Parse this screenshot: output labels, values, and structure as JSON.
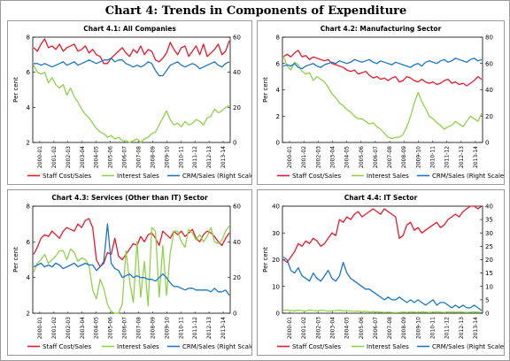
{
  "title": "Chart 4: Trends in Components of Expenditure",
  "colors": {
    "staff": "#e8192c",
    "interest": "#8fd24a",
    "crm": "#1b75c7"
  },
  "legend": [
    "Staff Cost/Sales",
    "Interest Sales",
    "CRM/Sales (Right Scale)"
  ],
  "x_labels": [
    "2000-01",
    "2001-02",
    "2002-03",
    "2003-04",
    "2004-05",
    "2005-06",
    "2006-07",
    "2007-08",
    "2008-09",
    "2009-10",
    "2010-11",
    "2011-12",
    "2012-13",
    "2013-14"
  ],
  "chart_data": [
    {
      "type": "line",
      "title": "Chart 4.1: All Companies",
      "ylabel": "Per cent",
      "ylim": [
        2,
        8
      ],
      "yticks": [
        2,
        4,
        6,
        8
      ],
      "y2lim": [
        0,
        60
      ],
      "y2ticks": [
        0,
        20,
        40,
        60
      ],
      "n_points": 54,
      "series": [
        {
          "name": "Staff Cost/Sales",
          "axis": "left",
          "values": [
            7.4,
            7.2,
            7.6,
            7.9,
            7.4,
            7.5,
            7.3,
            7.6,
            7.2,
            7.4,
            7.5,
            7.6,
            7.2,
            7.3,
            7.5,
            7.1,
            7.3,
            7.0,
            6.9,
            6.5,
            6.5,
            6.8,
            7.0,
            7.2,
            7.4,
            7.1,
            6.9,
            7.3,
            7.1,
            7.5,
            7.0,
            7.3,
            7.2,
            6.7,
            6.6,
            6.8,
            7.1,
            7.7,
            7.3,
            7.0,
            7.4,
            7.5,
            6.9,
            7.2,
            7.5,
            7.0,
            7.6,
            6.9,
            7.1,
            7.3,
            7.6,
            7.0,
            7.2,
            7.8
          ]
        },
        {
          "name": "Interest Sales",
          "axis": "left",
          "values": [
            6.4,
            6.0,
            5.9,
            6.0,
            5.4,
            5.7,
            5.3,
            5.1,
            5.3,
            4.7,
            5.1,
            4.6,
            4.3,
            3.9,
            3.6,
            3.4,
            3.1,
            2.8,
            2.6,
            2.5,
            2.3,
            2.4,
            2.2,
            2.3,
            2.1,
            2.1,
            2.0,
            2.1,
            2.2,
            2.0,
            2.2,
            2.3,
            2.5,
            2.6,
            3.0,
            3.4,
            3.8,
            3.3,
            3.0,
            3.1,
            2.9,
            3.2,
            3.0,
            3.1,
            3.3,
            3.2,
            3.0,
            3.4,
            3.5,
            3.9,
            3.7,
            3.8,
            4.0,
            4.1
          ]
        },
        {
          "name": "CRM/Sales (Right Scale)",
          "axis": "right",
          "values": [
            45,
            45,
            44,
            45,
            44,
            43,
            44,
            45,
            46,
            44,
            45,
            46,
            44,
            45,
            46,
            47,
            46,
            45,
            46,
            47,
            47,
            48,
            46,
            47,
            47,
            45,
            44,
            43,
            44,
            43,
            44,
            46,
            45,
            41,
            38,
            38,
            41,
            44,
            45,
            46,
            44,
            43,
            44,
            45,
            44,
            42,
            43,
            44,
            45,
            46,
            44,
            43,
            45,
            46
          ]
        }
      ]
    },
    {
      "type": "line",
      "title": "Chart 4.2: Manufacturing Sector",
      "ylabel": "Per cent",
      "ylim": [
        0,
        8
      ],
      "yticks": [
        0,
        2,
        4,
        6,
        8
      ],
      "y2lim": [
        0,
        80
      ],
      "y2ticks": [
        0,
        20,
        40,
        60,
        80
      ],
      "n_points": 54,
      "series": [
        {
          "name": "Staff Cost/Sales",
          "axis": "left",
          "values": [
            6.5,
            6.7,
            6.5,
            6.8,
            7.0,
            6.5,
            6.6,
            6.3,
            6.5,
            6.4,
            6.3,
            6.2,
            6.3,
            6.0,
            5.9,
            5.8,
            5.7,
            5.5,
            5.4,
            5.5,
            5.2,
            5.3,
            5.4,
            5.1,
            4.9,
            5.0,
            4.8,
            4.9,
            4.7,
            4.9,
            5.0,
            4.6,
            4.7,
            5.0,
            4.9,
            4.7,
            4.6,
            4.8,
            4.6,
            4.5,
            4.6,
            4.4,
            4.5,
            4.7,
            4.8,
            4.5,
            4.6,
            4.4,
            4.5,
            4.3,
            4.5,
            4.7,
            5.0,
            4.8
          ]
        },
        {
          "name": "Interest Sales",
          "axis": "left",
          "values": [
            6.6,
            5.8,
            5.5,
            6.1,
            5.9,
            5.4,
            5.2,
            5.3,
            4.7,
            5.0,
            4.8,
            4.6,
            4.2,
            3.7,
            3.4,
            3.0,
            2.8,
            2.5,
            2.3,
            2.0,
            1.8,
            1.8,
            1.6,
            1.4,
            1.5,
            1.2,
            1.0,
            0.7,
            0.4,
            0.3,
            0.4,
            0.4,
            0.6,
            1.2,
            2.0,
            3.0,
            3.8,
            3.1,
            2.6,
            2.0,
            1.8,
            1.5,
            1.3,
            1.0,
            1.2,
            1.3,
            1.6,
            1.4,
            1.2,
            1.6,
            2.0,
            1.8,
            1.6,
            2.2
          ]
        },
        {
          "name": "CRM/Sales (Right Scale)",
          "axis": "right",
          "values": [
            58,
            59,
            58,
            60,
            57,
            56,
            58,
            59,
            60,
            58,
            57,
            59,
            60,
            61,
            60,
            62,
            61,
            60,
            61,
            63,
            62,
            61,
            62,
            63,
            61,
            60,
            62,
            61,
            60,
            59,
            61,
            60,
            59,
            58,
            57,
            59,
            60,
            58,
            61,
            62,
            61,
            60,
            62,
            63,
            61,
            62,
            64,
            63,
            62,
            61,
            63,
            64,
            62,
            63
          ]
        }
      ]
    },
    {
      "type": "line",
      "title": "Chart 4.3: Services (Other than IT) Sector",
      "ylabel": "Per cent",
      "ylim": [
        2,
        8
      ],
      "yticks": [
        2,
        4,
        6,
        8
      ],
      "y2lim": [
        0,
        60
      ],
      "y2ticks": [
        0,
        20,
        40,
        60
      ],
      "n_points": 54,
      "series": [
        {
          "name": "Staff Cost/Sales",
          "axis": "left",
          "values": [
            5.3,
            5.7,
            6.2,
            6.4,
            6.3,
            6.6,
            6.4,
            6.2,
            6.6,
            6.8,
            6.7,
            6.6,
            7.0,
            6.8,
            7.2,
            7.3,
            6.8,
            5.0,
            4.6,
            4.8,
            5.4,
            5.3,
            6.2,
            5.2,
            5.0,
            5.3,
            5.6,
            5.9,
            5.8,
            6.3,
            6.0,
            6.4,
            6.5,
            6.2,
            5.8,
            6.6,
            6.4,
            6.2,
            6.6,
            6.4,
            6.6,
            6.3,
            6.5,
            6.7,
            6.2,
            6.0,
            6.4,
            6.6,
            6.5,
            6.3,
            6.0,
            5.8,
            6.2,
            6.5
          ]
        },
        {
          "name": "Interest Sales",
          "axis": "left",
          "values": [
            4.3,
            4.8,
            5.0,
            5.3,
            4.8,
            5.0,
            5.2,
            5.5,
            5.5,
            5.0,
            5.6,
            5.4,
            4.9,
            5.1,
            5.0,
            4.7,
            3.3,
            2.8,
            3.9,
            3.4,
            2.5,
            2.1,
            2.0,
            2.0,
            2.5,
            5.5,
            3.8,
            2.6,
            6.0,
            2.9,
            4.9,
            2.4,
            6.8,
            6.6,
            2.9,
            5.8,
            3.0,
            5.4,
            6.6,
            6.6,
            6.0,
            5.7,
            6.7,
            6.5,
            6.1,
            6.4,
            6.0,
            6.3,
            6.8,
            6.0,
            5.9,
            6.1,
            6.6,
            6.9
          ]
        },
        {
          "name": "CRM/Sales (Right Scale)",
          "axis": "right",
          "values": [
            26,
            27,
            28,
            26,
            27,
            26,
            28,
            27,
            25,
            26,
            27,
            28,
            26,
            27,
            28,
            27,
            27,
            24,
            26,
            29,
            50,
            28,
            25,
            24,
            20,
            21,
            22,
            20,
            21,
            20,
            20,
            19,
            19,
            18,
            20,
            22,
            20,
            17,
            15,
            15,
            14,
            13,
            14,
            14,
            13,
            13,
            13,
            13,
            12,
            14,
            12,
            12,
            13,
            10
          ]
        }
      ]
    },
    {
      "type": "line",
      "title": "Chart 4.4: IT Sector",
      "ylabel": "Per cent",
      "ylim": [
        0,
        40
      ],
      "yticks": [
        0,
        10,
        20,
        30,
        40
      ],
      "y2lim": [
        0,
        40
      ],
      "y2ticks": [
        0,
        5,
        10,
        15,
        20,
        25,
        30,
        35,
        40
      ],
      "n_points": 54,
      "series": [
        {
          "name": "Staff Cost/Sales",
          "axis": "left",
          "values": [
            20,
            19,
            21,
            23,
            26,
            25,
            27,
            26,
            28,
            27,
            25,
            26,
            28,
            30,
            29,
            35,
            34,
            36,
            35,
            37,
            38,
            36,
            37,
            38,
            39,
            38,
            37,
            39,
            38,
            37,
            36,
            28,
            29,
            33,
            34,
            31,
            32,
            30,
            31,
            32,
            33,
            34,
            32,
            33,
            35,
            36,
            37,
            36,
            38,
            39,
            40,
            40,
            39,
            40
          ]
        },
        {
          "name": "Interest Sales",
          "axis": "left",
          "values": [
            1.0,
            1.2,
            1.0,
            0.9,
            1.1,
            1.0,
            0.8,
            1.2,
            1.0,
            0.9,
            1.1,
            1.0,
            0.8,
            0.9,
            1.0,
            1.1,
            0.9,
            1.0,
            0.8,
            0.7,
            0.8,
            0.6,
            0.7,
            0.5,
            0.6,
            0.5,
            0.4,
            0.3,
            0.4,
            0.3,
            0.2,
            0.3,
            0.4,
            0.3,
            0.5,
            0.4,
            0.3,
            0.5,
            0.4,
            0.3,
            0.4,
            0.5,
            0.4,
            0.3,
            0.4,
            0.5,
            0.4,
            0.5,
            0.4,
            0.3,
            0.4,
            0.5,
            0.4,
            0.3
          ]
        },
        {
          "name": "CRM/Sales (Right Scale)",
          "axis": "right",
          "values": [
            21,
            20,
            16,
            15,
            17,
            14,
            13,
            12,
            15,
            13,
            12,
            14,
            16,
            13,
            12,
            14,
            19,
            15,
            13,
            12,
            11,
            10,
            9,
            9,
            8,
            7,
            6,
            5,
            6,
            5,
            5,
            6,
            5,
            4,
            5,
            4,
            5,
            4,
            3,
            4,
            5,
            3,
            4,
            4,
            3,
            2,
            3,
            2,
            3,
            2,
            2,
            3,
            2,
            1
          ]
        }
      ]
    }
  ]
}
